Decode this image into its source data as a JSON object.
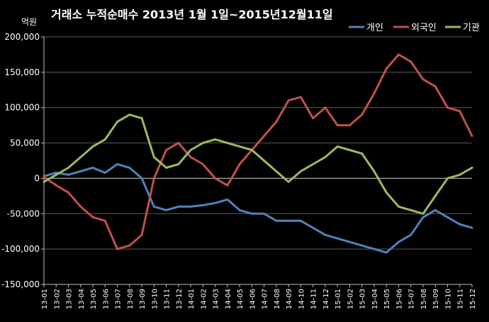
{
  "chart_data": {
    "type": "line",
    "title": "거래소 누적순매수 2013년 1월 1일~2015년12월11일",
    "unit_label": "억원",
    "ylim": [
      -150000,
      200000
    ],
    "yticks": [
      -150000,
      -100000,
      -50000,
      0,
      50000,
      100000,
      150000,
      200000
    ],
    "ytick_labels": [
      "-150,000",
      "-100,000",
      "-50,000",
      "0",
      "50,000",
      "100,000",
      "150,000",
      "200,000"
    ],
    "x_tick_labels": [
      "13-01",
      "13-02",
      "13-03",
      "13-04",
      "13-05",
      "13-06",
      "13-07",
      "13-08",
      "13-09",
      "13-10",
      "13-11",
      "13-12",
      "14-01",
      "14-02",
      "14-03",
      "14-04",
      "14-05",
      "14-06",
      "14-07",
      "14-08",
      "14-09",
      "14-10",
      "14-11",
      "14-12",
      "15-01",
      "15-02",
      "15-03",
      "15-04",
      "15-05",
      "15-06",
      "15-07",
      "15-08",
      "15-09",
      "15-10",
      "15-11",
      "15-12"
    ],
    "grid": true,
    "legend_position": "top-right",
    "x": [
      "13-01",
      "13-02",
      "13-03",
      "13-04",
      "13-05",
      "13-06",
      "13-07",
      "13-08",
      "13-09",
      "13-10",
      "13-11",
      "13-12",
      "14-01",
      "14-02",
      "14-03",
      "14-04",
      "14-05",
      "14-06",
      "14-07",
      "14-08",
      "14-09",
      "14-10",
      "14-11",
      "14-12",
      "15-01",
      "15-02",
      "15-03",
      "15-04",
      "15-05",
      "15-06",
      "15-07",
      "15-08",
      "15-09",
      "15-10",
      "15-11",
      "15-12"
    ],
    "series": [
      {
        "name": "개인",
        "color": "#4f81bd",
        "values": [
          3000,
          8000,
          5000,
          10000,
          15000,
          8000,
          20000,
          15000,
          0,
          -40000,
          -45000,
          -40000,
          -40000,
          -38000,
          -35000,
          -30000,
          -45000,
          -50000,
          -50000,
          -60000,
          -60000,
          -60000,
          -70000,
          -80000,
          -85000,
          -90000,
          -95000,
          -100000,
          -105000,
          -90000,
          -80000,
          -55000,
          -45000,
          -55000,
          -65000,
          -70000
        ]
      },
      {
        "name": "외국인",
        "color": "#c0504d",
        "values": [
          2000,
          -10000,
          -20000,
          -40000,
          -55000,
          -60000,
          -100000,
          -95000,
          -80000,
          0,
          40000,
          50000,
          30000,
          20000,
          0,
          -10000,
          20000,
          40000,
          60000,
          80000,
          110000,
          115000,
          85000,
          100000,
          75000,
          75000,
          90000,
          120000,
          155000,
          175000,
          165000,
          140000,
          130000,
          100000,
          95000,
          60000
        ]
      },
      {
        "name": "기관",
        "color": "#9bbb59",
        "values": [
          -5000,
          5000,
          15000,
          30000,
          45000,
          55000,
          80000,
          90000,
          85000,
          30000,
          15000,
          20000,
          40000,
          50000,
          55000,
          50000,
          45000,
          40000,
          25000,
          10000,
          -5000,
          10000,
          20000,
          30000,
          45000,
          40000,
          35000,
          10000,
          -20000,
          -40000,
          -45000,
          -50000,
          -25000,
          0,
          5000,
          15000
        ]
      }
    ]
  }
}
